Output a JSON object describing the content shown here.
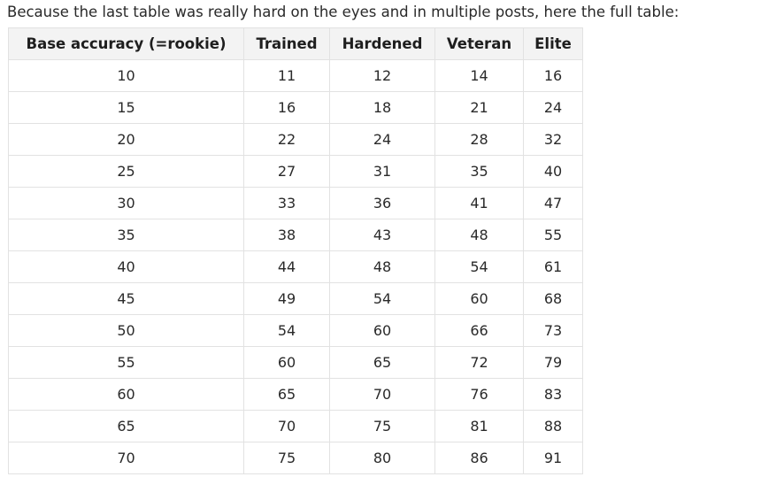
{
  "intro": "Because the last table was really hard on the eyes and in multiple posts, here the full table:",
  "table": {
    "headers": [
      "Base accuracy (=rookie)",
      "Trained",
      "Hardened",
      "Veteran",
      "Elite"
    ],
    "rows": [
      [
        "10",
        "11",
        "12",
        "14",
        "16"
      ],
      [
        "15",
        "16",
        "18",
        "21",
        "24"
      ],
      [
        "20",
        "22",
        "24",
        "28",
        "32"
      ],
      [
        "25",
        "27",
        "31",
        "35",
        "40"
      ],
      [
        "30",
        "33",
        "36",
        "41",
        "47"
      ],
      [
        "35",
        "38",
        "43",
        "48",
        "55"
      ],
      [
        "40",
        "44",
        "48",
        "54",
        "61"
      ],
      [
        "45",
        "49",
        "54",
        "60",
        "68"
      ],
      [
        "50",
        "54",
        "60",
        "66",
        "73"
      ],
      [
        "55",
        "60",
        "65",
        "72",
        "79"
      ],
      [
        "60",
        "65",
        "70",
        "76",
        "83"
      ],
      [
        "65",
        "70",
        "75",
        "81",
        "88"
      ],
      [
        "70",
        "75",
        "80",
        "86",
        "91"
      ]
    ]
  }
}
